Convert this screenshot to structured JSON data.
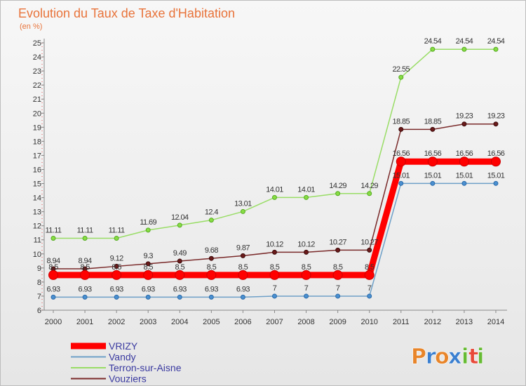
{
  "chart_data": {
    "type": "line",
    "title": "Evolution du Taux de Taxe d'Habitation",
    "subtitle": "(en %)",
    "x": [
      "2000",
      "2001",
      "2002",
      "2003",
      "2004",
      "2005",
      "2006",
      "2007",
      "2008",
      "2009",
      "2010",
      "2011",
      "2012",
      "2013",
      "2014"
    ],
    "ylim": [
      6,
      25
    ],
    "yticks": [
      6,
      7,
      8,
      9,
      10,
      11,
      12,
      13,
      14,
      15,
      16,
      17,
      18,
      19,
      20,
      21,
      22,
      23,
      24,
      25
    ],
    "grid": false,
    "legend_position": "bottom-left",
    "series": [
      {
        "name": "VRIZY",
        "color": "#ff0000",
        "values": [
          8.5,
          8.5,
          8.5,
          8.5,
          8.5,
          8.5,
          8.5,
          8.5,
          8.5,
          8.5,
          8.5,
          16.56,
          16.56,
          16.56,
          16.56
        ],
        "labels": [
          "8.5",
          "8.5",
          "8.5",
          "8.5",
          "8.5",
          "8.5",
          "8.5",
          "8.5",
          "8.5",
          "8.5",
          "8.5",
          "16.56",
          "16.56",
          "16.56",
          "16.56"
        ]
      },
      {
        "name": "Vandy",
        "color": "#6ea0c8",
        "values": [
          6.93,
          6.93,
          6.93,
          6.93,
          6.93,
          6.93,
          6.93,
          7,
          7,
          7,
          7,
          15.01,
          15.01,
          15.01,
          15.01
        ],
        "labels": [
          "6.93",
          "6.93",
          "6.93",
          "6.93",
          "6.93",
          "6.93",
          "6.93",
          "7",
          "7",
          "7",
          "7",
          "15.01",
          "15.01",
          "15.01",
          "15.01"
        ]
      },
      {
        "name": "Terron-sur-Aisne",
        "color": "#99dd66",
        "values": [
          11.11,
          11.11,
          11.11,
          11.69,
          12.04,
          12.4,
          13.01,
          14.01,
          14.01,
          14.29,
          14.29,
          22.55,
          24.54,
          24.54,
          24.54
        ],
        "labels": [
          "11.11",
          "11.11",
          "11.11",
          "11.69",
          "12.04",
          "12.4",
          "13.01",
          "14.01",
          "14.01",
          "14.29",
          "14.29",
          "22.55",
          "24.54",
          "24.54",
          "24.54"
        ]
      },
      {
        "name": "Vouziers",
        "color": "#7a2a2a",
        "values": [
          8.94,
          8.94,
          9.12,
          9.3,
          9.49,
          9.68,
          9.87,
          10.12,
          10.12,
          10.27,
          10.27,
          18.85,
          18.85,
          19.23,
          19.23
        ],
        "labels": [
          "8.94",
          "8.94",
          "9.12",
          "9.3",
          "9.49",
          "9.68",
          "9.87",
          "10.12",
          "10.12",
          "10.27",
          "10.27",
          "18.85",
          "18.85",
          "19.23",
          "19.23"
        ]
      }
    ]
  },
  "logo": {
    "text": "Proxiti"
  }
}
